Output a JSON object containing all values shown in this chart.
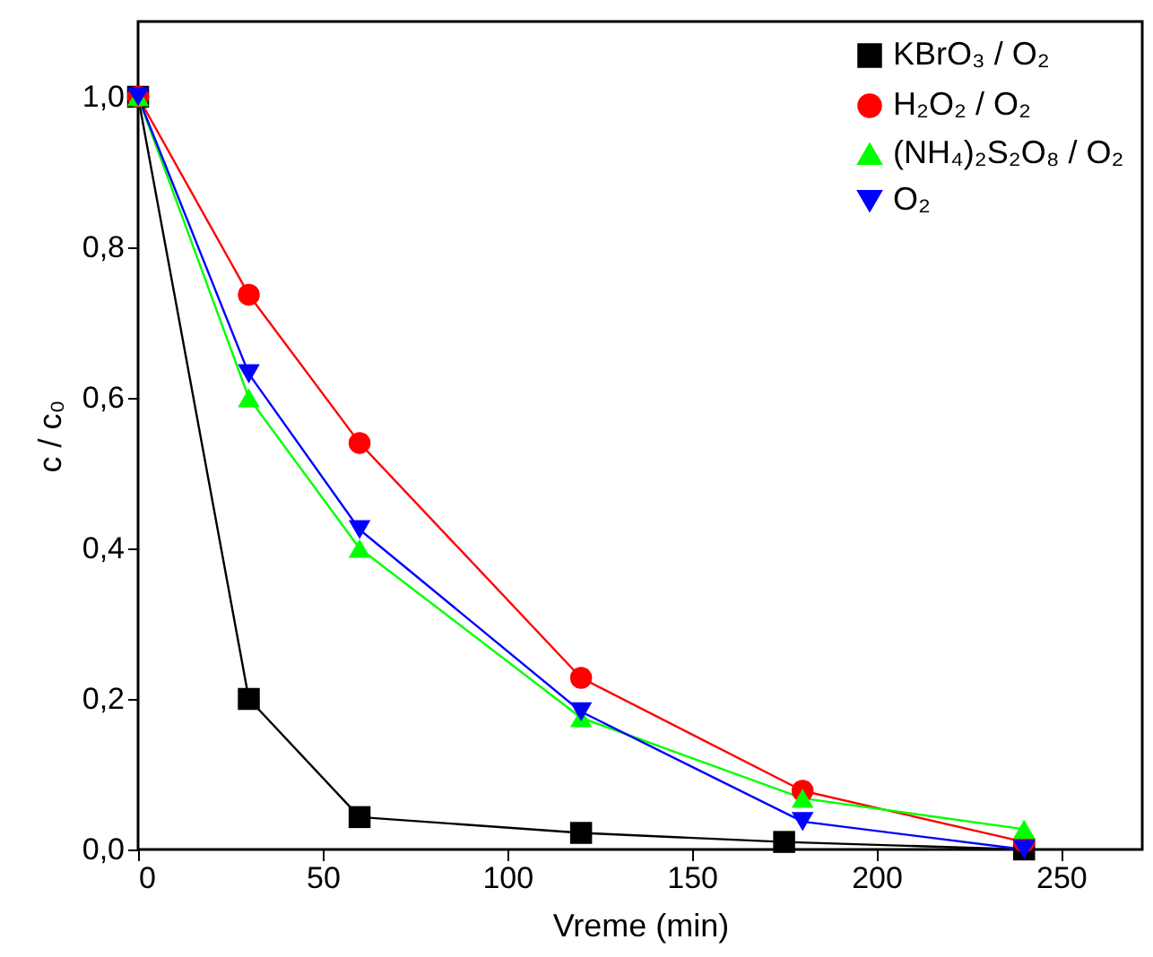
{
  "chart_data": {
    "type": "line",
    "xlabel": "Vreme (min)",
    "ylabel": "c / c₀",
    "xlim": [
      0,
      272
    ],
    "xticks": [
      0,
      50,
      100,
      150,
      200,
      250
    ],
    "ylim": [
      0,
      1.1
    ],
    "yticks": [
      {
        "value": 0,
        "label": "0,0"
      },
      {
        "value": 0.2,
        "label": "0,2"
      },
      {
        "value": 0.4,
        "label": "0,4"
      },
      {
        "value": 0.6,
        "label": "0,6"
      },
      {
        "value": 0.8,
        "label": "0,8"
      },
      {
        "value": 1.0,
        "label": "1,0"
      }
    ],
    "x": [
      0,
      30,
      60,
      120,
      180,
      240
    ],
    "legend": "top right",
    "grid": false,
    "line_style": "solid",
    "series": [
      {
        "name": "KBrO₃ / O₂",
        "color": "#000000",
        "marker": "square",
        "x": [
          0,
          30,
          60,
          120,
          175,
          240
        ],
        "values": [
          1.0,
          0.2,
          0.043,
          0.022,
          0.01,
          0.0
        ]
      },
      {
        "name": "H₂O₂ / O₂",
        "color": "#ff0000",
        "marker": "circle",
        "values": [
          1.0,
          0.737,
          0.54,
          0.228,
          0.078,
          0.01
        ]
      },
      {
        "name": "(NH₄)₂S₂O₈ / O₂",
        "color": "#00ff00",
        "marker": "triangle",
        "values": [
          1.0,
          0.6,
          0.4,
          0.175,
          0.068,
          0.027
        ]
      },
      {
        "name": "O₂",
        "color": "#0000ff",
        "marker": "triangle-down",
        "values": [
          1.0,
          0.632,
          0.425,
          0.183,
          0.037,
          0.0
        ]
      }
    ]
  }
}
